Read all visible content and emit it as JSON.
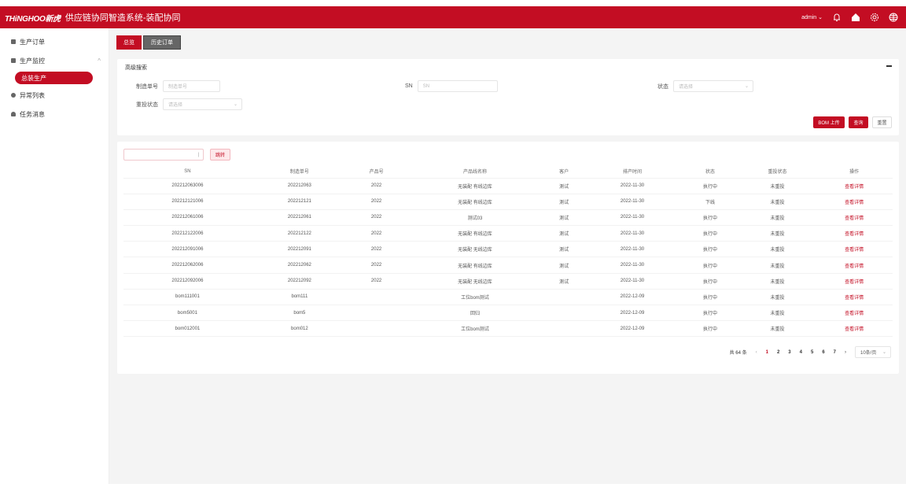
{
  "header": {
    "logo": "THiNGHOO新虎",
    "title": "供应链协同智造系统-装配协同",
    "user": "admin",
    "icons": [
      "bell-icon",
      "home-icon",
      "settings-icon",
      "globe-icon"
    ]
  },
  "sidebar": {
    "items": [
      {
        "label": "生产订单",
        "icon": "list-icon"
      },
      {
        "label": "生产监控",
        "icon": "chart-icon",
        "expanded": true,
        "children": [
          {
            "label": "总装生产",
            "active": true
          }
        ]
      },
      {
        "label": "异常列表",
        "icon": "alert-icon"
      },
      {
        "label": "任务消息",
        "icon": "bell-icon"
      }
    ]
  },
  "tabs": [
    {
      "label": "总览",
      "active": true
    },
    {
      "label": "历史订单"
    }
  ],
  "search": {
    "title": "高级搜索",
    "fields": [
      {
        "label": "制造单号",
        "placeholder": "制造单号"
      },
      {
        "label": "SN",
        "placeholder": "SN"
      },
      {
        "label": "状态",
        "placeholder": "请选择"
      },
      {
        "label": "重投状态",
        "placeholder": "请选择"
      }
    ],
    "buttons": {
      "bom": "BOM 上传",
      "query": "查询",
      "reset": "重置"
    }
  },
  "toolbar": {
    "jump_label": "跳转",
    "jump_value": ""
  },
  "table": {
    "columns": [
      "SN",
      "制造单号",
      "产品号",
      "产品线名称",
      "客户",
      "排产时间",
      "状态",
      "重投状态",
      "操作"
    ],
    "rows": [
      [
        "202212063006",
        "202212063",
        "2022",
        "无装配 有线边库",
        "测试",
        "2022-11-30",
        "执行中",
        "未重投",
        "查看详情"
      ],
      [
        "202212121006",
        "202212121",
        "2022",
        "无装配 有线边库",
        "测试",
        "2022-11-30",
        "下线",
        "未重投",
        "查看详情"
      ],
      [
        "202212061006",
        "202212061",
        "2022",
        "测试03",
        "测试",
        "2022-11-30",
        "执行中",
        "未重投",
        "查看详情"
      ],
      [
        "202212122006",
        "202212122",
        "2022",
        "无装配 有线边库",
        "测试",
        "2022-11-30",
        "执行中",
        "未重投",
        "查看详情"
      ],
      [
        "202212091006",
        "202212091",
        "2022",
        "无装配 无线边库",
        "测试",
        "2022-11-30",
        "执行中",
        "未重投",
        "查看详情"
      ],
      [
        "202212062006",
        "202212062",
        "2022",
        "无装配 有线边库",
        "测试",
        "2022-11-30",
        "执行中",
        "未重投",
        "查看详情"
      ],
      [
        "202212092006",
        "202212092",
        "2022",
        "无装配 无线边库",
        "测试",
        "2022-11-30",
        "执行中",
        "未重投",
        "查看详情"
      ],
      [
        "bom111001",
        "bom111",
        "",
        "工位bom测试",
        "",
        "2022-12-09",
        "执行中",
        "未重投",
        "查看详情"
      ],
      [
        "bom5001",
        "bom5",
        "",
        "回归",
        "",
        "2022-12-09",
        "执行中",
        "未重投",
        "查看详情"
      ],
      [
        "bom012001",
        "bom012",
        "",
        "工位bom测试",
        "",
        "2022-12-09",
        "执行中",
        "未重投",
        "查看详情"
      ]
    ]
  },
  "pagination": {
    "total": "共 64 条",
    "pages": [
      "1",
      "2",
      "3",
      "4",
      "5",
      "6",
      "7"
    ],
    "current": "1",
    "page_size": "10条/页"
  },
  "colors": {
    "brand": "#c30d23",
    "dark_tab": "#666666"
  }
}
